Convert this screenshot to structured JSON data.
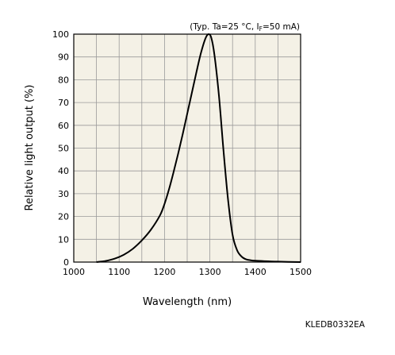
{
  "chart_data": {
    "type": "line",
    "xlabel": "Wavelength (nm)",
    "ylabel": "Relative light output (%)",
    "xlim": [
      1000,
      1500
    ],
    "ylim": [
      0,
      100
    ],
    "xticks": [
      1000,
      1100,
      1200,
      1300,
      1400,
      1500
    ],
    "yticks": [
      0,
      10,
      20,
      30,
      40,
      50,
      60,
      70,
      80,
      90,
      100
    ],
    "grid": true,
    "background": "#f4f1e6",
    "line_color": "#000000",
    "conditions": {
      "prefix": "(Typ. Ta=25 °C, I",
      "sub": "F",
      "suffix": "=50 mA)"
    },
    "code": "KLEDB0332EA",
    "series": [
      {
        "x": [
          1050,
          1070,
          1090,
          1110,
          1130,
          1150,
          1170,
          1190,
          1200,
          1210,
          1220,
          1230,
          1240,
          1250,
          1260,
          1270,
          1280,
          1290,
          1297,
          1303,
          1310,
          1320,
          1330,
          1340,
          1350,
          1360,
          1370,
          1380,
          1390,
          1400,
          1420,
          1450,
          1500
        ],
        "y": [
          0,
          0.5,
          1.5,
          3.2,
          5.8,
          9.5,
          14.2,
          20.5,
          25.5,
          32,
          39.5,
          47.5,
          56,
          65,
          74,
          83,
          91.5,
          98,
          100,
          98.5,
          91,
          73,
          49,
          27.5,
          12,
          5.2,
          2.4,
          1.2,
          0.8,
          0.6,
          0.4,
          0.2,
          0
        ]
      }
    ]
  }
}
